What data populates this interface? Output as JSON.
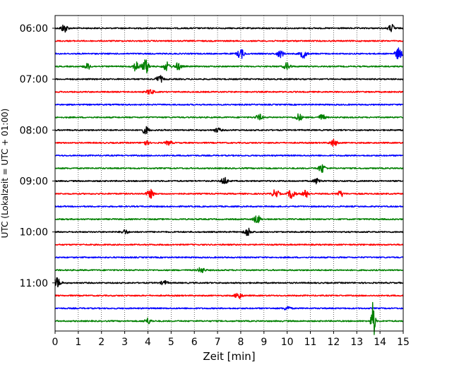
{
  "chart_data": {
    "type": "line",
    "title": "",
    "xlabel": "Zeit  [min]",
    "ylabel": "UTC (Lokalzeit = UTC + 01:00)",
    "xlim": [
      0,
      15
    ],
    "x_ticks": [
      "0",
      "1",
      "2",
      "3",
      "4",
      "5",
      "6",
      "7",
      "8",
      "9",
      "10",
      "11",
      "12",
      "13",
      "14",
      "15"
    ],
    "y_tick_labels": [
      "06:00",
      "07:00",
      "08:00",
      "09:00",
      "10:00",
      "11:00"
    ],
    "y_tick_rows": [
      0,
      4,
      8,
      12,
      16,
      20
    ],
    "grid": "vertical-dotted",
    "row_start": "06:00",
    "row_interval_minutes": 15,
    "row_count": 24,
    "colors": [
      "#000000",
      "#ff0000",
      "#0000ff",
      "#008000"
    ],
    "series": [
      {
        "start": "06:00",
        "color": "#000000",
        "events": [
          {
            "t": 0.4,
            "amp": 6
          },
          {
            "t": 14.5,
            "amp": 5
          }
        ]
      },
      {
        "start": "06:15",
        "color": "#ff0000",
        "events": []
      },
      {
        "start": "06:30",
        "color": "#0000ff",
        "events": [
          {
            "t": 8.0,
            "amp": 7
          },
          {
            "t": 9.7,
            "amp": 5
          },
          {
            "t": 10.7,
            "amp": 6
          },
          {
            "t": 14.8,
            "amp": 8
          }
        ]
      },
      {
        "start": "06:45",
        "color": "#008000",
        "events": [
          {
            "t": 1.4,
            "amp": 4
          },
          {
            "t": 3.5,
            "amp": 7
          },
          {
            "t": 3.9,
            "amp": 10
          },
          {
            "t": 4.8,
            "amp": 6
          },
          {
            "t": 5.3,
            "amp": 5
          },
          {
            "t": 10.0,
            "amp": 5
          }
        ]
      },
      {
        "start": "07:00",
        "color": "#000000",
        "events": [
          {
            "t": 4.5,
            "amp": 5
          }
        ]
      },
      {
        "start": "07:15",
        "color": "#ff0000",
        "events": [
          {
            "t": 4.1,
            "amp": 4
          }
        ]
      },
      {
        "start": "07:30",
        "color": "#0000ff",
        "events": []
      },
      {
        "start": "07:45",
        "color": "#008000",
        "events": [
          {
            "t": 8.8,
            "amp": 4
          },
          {
            "t": 10.5,
            "amp": 5
          },
          {
            "t": 11.5,
            "amp": 4
          }
        ]
      },
      {
        "start": "08:00",
        "color": "#000000",
        "events": [
          {
            "t": 3.9,
            "amp": 5
          },
          {
            "t": 7.0,
            "amp": 3
          }
        ]
      },
      {
        "start": "08:15",
        "color": "#ff0000",
        "events": [
          {
            "t": 3.9,
            "amp": 3
          },
          {
            "t": 4.9,
            "amp": 3
          },
          {
            "t": 12.0,
            "amp": 5
          }
        ]
      },
      {
        "start": "08:30",
        "color": "#0000ff",
        "events": []
      },
      {
        "start": "08:45",
        "color": "#008000",
        "events": [
          {
            "t": 11.5,
            "amp": 6
          }
        ]
      },
      {
        "start": "09:00",
        "color": "#000000",
        "events": [
          {
            "t": 7.3,
            "amp": 5
          },
          {
            "t": 11.3,
            "amp": 4
          }
        ]
      },
      {
        "start": "09:15",
        "color": "#ff0000",
        "events": [
          {
            "t": 4.1,
            "amp": 6
          },
          {
            "t": 9.5,
            "amp": 6
          },
          {
            "t": 10.2,
            "amp": 7
          },
          {
            "t": 10.8,
            "amp": 5
          },
          {
            "t": 12.3,
            "amp": 4
          }
        ]
      },
      {
        "start": "09:30",
        "color": "#0000ff",
        "events": []
      },
      {
        "start": "09:45",
        "color": "#008000",
        "events": [
          {
            "t": 8.7,
            "amp": 6
          }
        ]
      },
      {
        "start": "10:00",
        "color": "#000000",
        "events": [
          {
            "t": 3.0,
            "amp": 3
          },
          {
            "t": 8.3,
            "amp": 6
          }
        ]
      },
      {
        "start": "10:15",
        "color": "#ff0000",
        "events": []
      },
      {
        "start": "10:30",
        "color": "#0000ff",
        "events": []
      },
      {
        "start": "10:45",
        "color": "#008000",
        "events": [
          {
            "t": 6.3,
            "amp": 4
          }
        ]
      },
      {
        "start": "11:00",
        "color": "#000000",
        "events": [
          {
            "t": 0.1,
            "amp": 7
          },
          {
            "t": 4.7,
            "amp": 3
          }
        ]
      },
      {
        "start": "11:15",
        "color": "#ff0000",
        "events": [
          {
            "t": 7.9,
            "amp": 5
          }
        ]
      },
      {
        "start": "11:30",
        "color": "#0000ff",
        "events": [
          {
            "t": 10.0,
            "amp": 3
          }
        ]
      },
      {
        "start": "11:45",
        "color": "#008000",
        "events": [
          {
            "t": 4.0,
            "amp": 4
          },
          {
            "t": 13.7,
            "amp": 30
          }
        ]
      }
    ]
  }
}
